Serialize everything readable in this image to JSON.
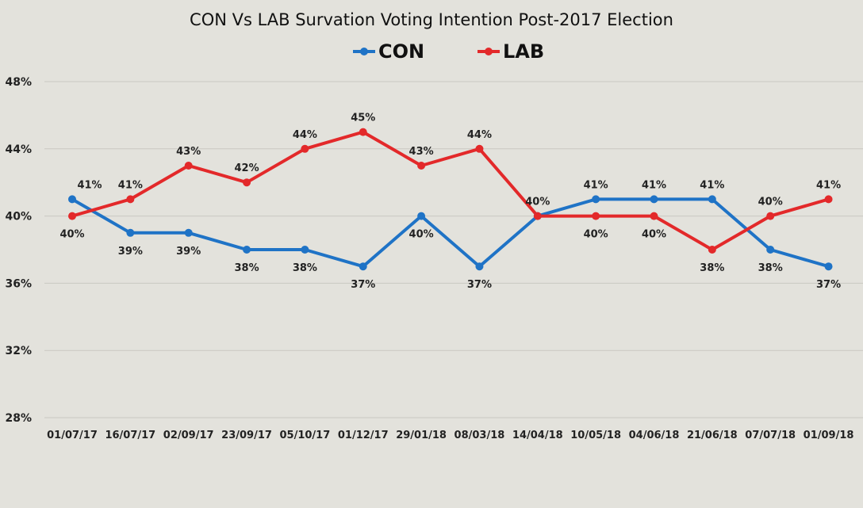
{
  "colors": {
    "background": "#e3e2dc",
    "con": "#1f73c6",
    "lab": "#e3292a",
    "grid": "#c9c8c2",
    "text": "#222222"
  },
  "chart_data": {
    "type": "line",
    "title": "CON Vs LAB Survation Voting Intention Post-2017 Election",
    "xlabel": "",
    "ylabel": "",
    "ylim": [
      28,
      48
    ],
    "yticks": [
      28,
      32,
      36,
      40,
      44,
      48
    ],
    "ytick_labels": [
      "28%",
      "32%",
      "36%",
      "40%",
      "44%",
      "48%"
    ],
    "grid": true,
    "legend_position": "top-center",
    "categories": [
      "01/07/17",
      "16/07/17",
      "02/09/17",
      "23/09/17",
      "05/10/17",
      "01/12/17",
      "29/01/18",
      "08/03/18",
      "14/04/18",
      "10/05/18",
      "04/06/18",
      "21/06/18",
      "07/07/18",
      "01/09/18"
    ],
    "series": [
      {
        "name": "CON",
        "color": "#1f73c6",
        "values": [
          41,
          39,
          39,
          38,
          38,
          37,
          40,
          37,
          40,
          41,
          41,
          41,
          38,
          37
        ],
        "labels": [
          "41%",
          "39%",
          "39%",
          "38%",
          "38%",
          "37%",
          "40%",
          "37%",
          "40%",
          "41%",
          "41%",
          "41%",
          "38%",
          "37%"
        ]
      },
      {
        "name": "LAB",
        "color": "#e3292a",
        "values": [
          40,
          41,
          43,
          42,
          44,
          45,
          43,
          44,
          40,
          40,
          40,
          38,
          40,
          41
        ],
        "labels": [
          "40%",
          "41%",
          "43%",
          "42%",
          "44%",
          "45%",
          "43%",
          "44%",
          "",
          "40%",
          "40%",
          "38%",
          "40%",
          "41%"
        ]
      }
    ]
  }
}
